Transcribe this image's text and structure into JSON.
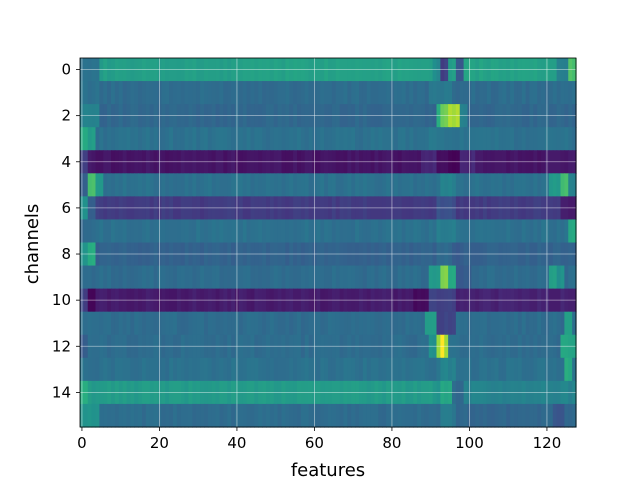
{
  "chart_data": {
    "type": "heatmap",
    "title": "",
    "xlabel": "features",
    "ylabel": "channels",
    "n_cols": 128,
    "n_rows": 16,
    "xlim": [
      -0.5,
      127.5
    ],
    "ylim": [
      15.5,
      -0.5
    ],
    "xticks": [
      0,
      20,
      40,
      60,
      80,
      100,
      120
    ],
    "yticks": [
      0,
      2,
      4,
      6,
      8,
      10,
      12,
      14
    ],
    "grid": true,
    "colormap": "viridis",
    "value_range": [
      0,
      1
    ],
    "rows": [
      {
        "channel": 0,
        "base": 0.52,
        "segments": [
          [
            0,
            4,
            0.4
          ],
          [
            5,
            40,
            0.56
          ],
          [
            41,
            90,
            0.58
          ],
          [
            91,
            92,
            0.48
          ],
          [
            93,
            94,
            0.2
          ],
          [
            95,
            96,
            0.55
          ],
          [
            97,
            98,
            0.28
          ],
          [
            99,
            122,
            0.58
          ],
          [
            123,
            125,
            0.45
          ],
          [
            126,
            127,
            0.72
          ]
        ]
      },
      {
        "channel": 1,
        "base": 0.36,
        "segments": [
          [
            0,
            4,
            0.38
          ],
          [
            90,
            95,
            0.4
          ]
        ]
      },
      {
        "channel": 2,
        "base": 0.34,
        "segments": [
          [
            0,
            4,
            0.45
          ],
          [
            92,
            92,
            0.65
          ],
          [
            93,
            94,
            0.78
          ],
          [
            95,
            97,
            0.88
          ],
          [
            98,
            99,
            0.45
          ]
        ]
      },
      {
        "channel": 3,
        "base": 0.38,
        "segments": [
          [
            0,
            1,
            0.62
          ],
          [
            2,
            3,
            0.55
          ],
          [
            90,
            96,
            0.4
          ]
        ]
      },
      {
        "channel": 4,
        "base": 0.06,
        "segments": [
          [
            0,
            1,
            0.2
          ],
          [
            88,
            91,
            0.12
          ],
          [
            92,
            94,
            0.04
          ],
          [
            95,
            97,
            0.0
          ],
          [
            98,
            101,
            0.12
          ],
          [
            120,
            127,
            0.08
          ]
        ]
      },
      {
        "channel": 5,
        "base": 0.38,
        "segments": [
          [
            0,
            1,
            0.3
          ],
          [
            2,
            3,
            0.7
          ],
          [
            4,
            5,
            0.55
          ],
          [
            93,
            96,
            0.45
          ],
          [
            121,
            123,
            0.55
          ],
          [
            124,
            125,
            0.7
          ],
          [
            126,
            127,
            0.45
          ]
        ]
      },
      {
        "channel": 6,
        "base": 0.18,
        "segments": [
          [
            0,
            1,
            0.5
          ],
          [
            2,
            3,
            0.3
          ],
          [
            92,
            96,
            0.25
          ],
          [
            124,
            127,
            0.08
          ]
        ]
      },
      {
        "channel": 7,
        "base": 0.38,
        "segments": [
          [
            0,
            2,
            0.35
          ],
          [
            92,
            96,
            0.42
          ],
          [
            126,
            127,
            0.6
          ]
        ]
      },
      {
        "channel": 8,
        "base": 0.32,
        "segments": [
          [
            0,
            1,
            0.52
          ],
          [
            2,
            3,
            0.62
          ],
          [
            92,
            95,
            0.35
          ],
          [
            96,
            98,
            0.28
          ]
        ]
      },
      {
        "channel": 9,
        "base": 0.36,
        "segments": [
          [
            90,
            92,
            0.55
          ],
          [
            93,
            94,
            0.82
          ],
          [
            95,
            96,
            0.6
          ],
          [
            97,
            100,
            0.28
          ],
          [
            121,
            122,
            0.58
          ],
          [
            123,
            124,
            0.5
          ]
        ]
      },
      {
        "channel": 10,
        "base": 0.08,
        "segments": [
          [
            0,
            1,
            0.2
          ],
          [
            2,
            3,
            0.02
          ],
          [
            86,
            89,
            0.02
          ],
          [
            90,
            96,
            0.2
          ],
          [
            97,
            127,
            0.1
          ]
        ]
      },
      {
        "channel": 11,
        "base": 0.36,
        "segments": [
          [
            89,
            91,
            0.55
          ],
          [
            92,
            96,
            0.2
          ],
          [
            125,
            126,
            0.58
          ]
        ]
      },
      {
        "channel": 12,
        "base": 0.36,
        "segments": [
          [
            0,
            1,
            0.3
          ],
          [
            90,
            91,
            0.5
          ],
          [
            92,
            92,
            0.85
          ],
          [
            93,
            93,
            0.98
          ],
          [
            94,
            94,
            0.85
          ],
          [
            95,
            96,
            0.4
          ],
          [
            124,
            127,
            0.6
          ]
        ]
      },
      {
        "channel": 13,
        "base": 0.38,
        "segments": [
          [
            93,
            96,
            0.45
          ],
          [
            125,
            126,
            0.62
          ]
        ]
      },
      {
        "channel": 14,
        "base": 0.52,
        "segments": [
          [
            0,
            1,
            0.62
          ],
          [
            2,
            90,
            0.55
          ],
          [
            93,
            95,
            0.6
          ],
          [
            96,
            98,
            0.35
          ],
          [
            99,
            127,
            0.45
          ]
        ]
      },
      {
        "channel": 15,
        "base": 0.34,
        "segments": [
          [
            0,
            4,
            0.52
          ],
          [
            5,
            90,
            0.36
          ],
          [
            93,
            96,
            0.42
          ],
          [
            122,
            124,
            0.28
          ]
        ]
      }
    ]
  }
}
